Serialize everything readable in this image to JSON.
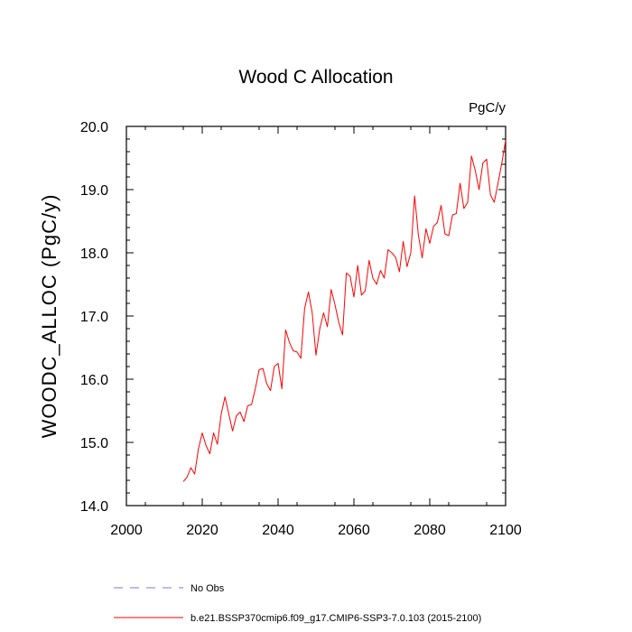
{
  "chart_data": {
    "type": "line",
    "title": "Wood C Allocation",
    "units_label": "PgC/y",
    "ylabel": "WOODC_ALLOC  (PgC/y)",
    "xlabel": "",
    "xlim": [
      2000,
      2100
    ],
    "ylim": [
      14.0,
      20.0
    ],
    "xticks": [
      2000,
      2020,
      2040,
      2060,
      2080,
      2100
    ],
    "xtick_labels": [
      "2000",
      "2020",
      "2040",
      "2060",
      "2080",
      "2100"
    ],
    "yticks": [
      14.0,
      15.0,
      16.0,
      17.0,
      18.0,
      19.0,
      20.0
    ],
    "ytick_labels": [
      "14.0",
      "15.0",
      "16.0",
      "17.0",
      "18.0",
      "19.0",
      "20.0"
    ],
    "grid": false,
    "legend_position": "bottom",
    "series": [
      {
        "name": "No Obs",
        "color": "#7777ee",
        "dash": "dashed",
        "x": [],
        "values": []
      },
      {
        "name": "b.e21.BSSP370cmip6.f09_g17.CMIP6-SSP3-7.0.103 (2015-2100)",
        "color": "#ff0000",
        "dash": "solid",
        "x": [
          2015,
          2016,
          2017,
          2018,
          2019,
          2020,
          2021,
          2022,
          2023,
          2024,
          2025,
          2026,
          2027,
          2028,
          2029,
          2030,
          2031,
          2032,
          2033,
          2034,
          2035,
          2036,
          2037,
          2038,
          2039,
          2040,
          2041,
          2042,
          2043,
          2044,
          2045,
          2046,
          2047,
          2048,
          2049,
          2050,
          2051,
          2052,
          2053,
          2054,
          2055,
          2056,
          2057,
          2058,
          2059,
          2060,
          2061,
          2062,
          2063,
          2064,
          2065,
          2066,
          2067,
          2068,
          2069,
          2070,
          2071,
          2072,
          2073,
          2074,
          2075,
          2076,
          2077,
          2078,
          2079,
          2080,
          2081,
          2082,
          2083,
          2084,
          2085,
          2086,
          2087,
          2088,
          2089,
          2090,
          2091,
          2092,
          2093,
          2094,
          2095,
          2096,
          2097,
          2098,
          2099,
          2100
        ],
        "values": [
          14.38,
          14.45,
          14.6,
          14.5,
          14.9,
          15.15,
          14.95,
          14.82,
          15.15,
          14.97,
          15.45,
          15.72,
          15.45,
          15.18,
          15.42,
          15.48,
          15.33,
          15.58,
          15.6,
          15.85,
          16.15,
          16.17,
          15.93,
          15.82,
          16.2,
          16.25,
          15.85,
          16.78,
          16.58,
          16.45,
          16.43,
          16.33,
          17.12,
          17.38,
          17.05,
          16.38,
          16.8,
          17.05,
          16.83,
          17.42,
          17.18,
          16.9,
          16.7,
          17.68,
          17.63,
          17.3,
          17.8,
          17.33,
          17.4,
          17.88,
          17.6,
          17.5,
          17.72,
          17.6,
          18.05,
          18.0,
          17.93,
          17.7,
          18.18,
          17.78,
          18.0,
          18.9,
          18.28,
          17.92,
          18.38,
          18.15,
          18.42,
          18.48,
          18.75,
          18.3,
          18.27,
          18.6,
          18.62,
          19.1,
          18.7,
          18.8,
          19.53,
          19.3,
          19.0,
          19.42,
          19.48,
          18.92,
          18.8,
          19.1,
          19.42,
          19.78
        ]
      }
    ]
  }
}
